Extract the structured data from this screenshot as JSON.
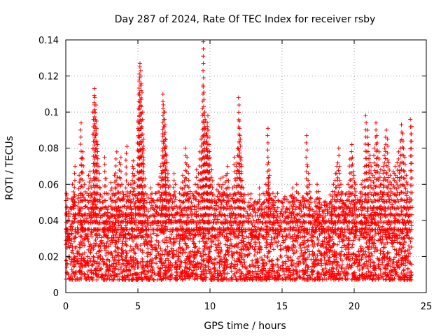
{
  "chart_data": {
    "type": "scatter",
    "title": "Day 287 of 2024, Rate Of TEC Index for receiver rsby",
    "xlabel": "GPS time / hours",
    "ylabel": "ROTI / TECUs",
    "xlim": [
      0,
      25
    ],
    "ylim": [
      0,
      0.14
    ],
    "grid": true,
    "marker": "+",
    "colors": {
      "points": "#ff0000",
      "grid": "#a0a0a0",
      "axes": "#000000"
    },
    "x_ticks": [
      {
        "value": 0,
        "label": "0"
      },
      {
        "value": 5,
        "label": "5"
      },
      {
        "value": 10,
        "label": "10"
      },
      {
        "value": 15,
        "label": "15"
      },
      {
        "value": 20,
        "label": "20"
      },
      {
        "value": 25,
        "label": "25"
      }
    ],
    "y_ticks": [
      {
        "value": 0,
        "label": "0"
      },
      {
        "value": 0.02,
        "label": "0.02"
      },
      {
        "value": 0.04,
        "label": "0.04"
      },
      {
        "value": 0.06,
        "label": "0.06"
      },
      {
        "value": 0.08,
        "label": "0.08"
      },
      {
        "value": 0.1,
        "label": "0.1"
      },
      {
        "value": 0.12,
        "label": "0.12"
      },
      {
        "value": 0.14,
        "label": "0.14"
      }
    ],
    "series": [
      {
        "name": "ROTI",
        "points": [
          [
            0.0,
            0.018
          ],
          [
            0.05,
            0.055
          ],
          [
            0.1,
            0.052
          ],
          [
            0.15,
            0.045
          ],
          [
            0.2,
            0.03
          ],
          [
            0.3,
            0.025
          ],
          [
            0.4,
            0.038
          ],
          [
            0.5,
            0.06
          ],
          [
            0.6,
            0.07
          ],
          [
            0.7,
            0.033
          ],
          [
            0.8,
            0.052
          ],
          [
            0.9,
            0.065
          ],
          [
            1.0,
            0.045
          ],
          [
            1.05,
            0.094
          ],
          [
            1.1,
            0.075
          ],
          [
            1.2,
            0.078
          ],
          [
            1.3,
            0.06
          ],
          [
            1.4,
            0.048
          ],
          [
            1.5,
            0.055
          ],
          [
            1.6,
            0.065
          ],
          [
            1.7,
            0.067
          ],
          [
            1.8,
            0.062
          ],
          [
            1.9,
            0.1
          ],
          [
            1.95,
            0.104
          ],
          [
            2.0,
            0.113
          ],
          [
            2.05,
            0.108
          ],
          [
            2.1,
            0.095
          ],
          [
            2.15,
            0.088
          ],
          [
            2.2,
            0.082
          ],
          [
            2.3,
            0.07
          ],
          [
            2.4,
            0.058
          ],
          [
            2.5,
            0.05
          ],
          [
            2.6,
            0.047
          ],
          [
            2.7,
            0.075
          ],
          [
            2.8,
            0.063
          ],
          [
            2.9,
            0.046
          ],
          [
            3.0,
            0.041
          ],
          [
            3.1,
            0.061
          ],
          [
            3.2,
            0.058
          ],
          [
            3.3,
            0.055
          ],
          [
            3.4,
            0.065
          ],
          [
            3.5,
            0.078
          ],
          [
            3.6,
            0.064
          ],
          [
            3.7,
            0.072
          ],
          [
            3.8,
            0.075
          ],
          [
            3.9,
            0.06
          ],
          [
            4.0,
            0.052
          ],
          [
            4.1,
            0.048
          ],
          [
            4.2,
            0.081
          ],
          [
            4.3,
            0.06
          ],
          [
            4.4,
            0.055
          ],
          [
            4.5,
            0.06
          ],
          [
            4.6,
            0.07
          ],
          [
            4.7,
            0.073
          ],
          [
            4.8,
            0.065
          ],
          [
            4.9,
            0.04
          ],
          [
            5.0,
            0.095
          ],
          [
            5.05,
            0.11
          ],
          [
            5.1,
            0.125
          ],
          [
            5.15,
            0.127
          ],
          [
            5.2,
            0.12
          ],
          [
            5.25,
            0.115
          ],
          [
            5.3,
            0.1
          ],
          [
            5.35,
            0.085
          ],
          [
            5.4,
            0.079
          ],
          [
            5.5,
            0.063
          ],
          [
            5.6,
            0.05
          ],
          [
            5.7,
            0.045
          ],
          [
            5.8,
            0.042
          ],
          [
            5.9,
            0.058
          ],
          [
            6.0,
            0.055
          ],
          [
            6.1,
            0.05
          ],
          [
            6.2,
            0.048
          ],
          [
            6.3,
            0.055
          ],
          [
            6.4,
            0.06
          ],
          [
            6.5,
            0.064
          ],
          [
            6.6,
            0.07
          ],
          [
            6.7,
            0.088
          ],
          [
            6.75,
            0.11
          ],
          [
            6.8,
            0.104
          ],
          [
            6.85,
            0.1
          ],
          [
            6.9,
            0.093
          ],
          [
            6.95,
            0.085
          ],
          [
            7.0,
            0.076
          ],
          [
            7.1,
            0.066
          ],
          [
            7.2,
            0.059
          ],
          [
            7.3,
            0.052
          ],
          [
            7.4,
            0.05
          ],
          [
            7.5,
            0.066
          ],
          [
            7.6,
            0.06
          ],
          [
            7.7,
            0.048
          ],
          [
            7.8,
            0.044
          ],
          [
            7.9,
            0.055
          ],
          [
            8.0,
            0.058
          ],
          [
            8.1,
            0.065
          ],
          [
            8.2,
            0.062
          ],
          [
            8.3,
            0.08
          ],
          [
            8.4,
            0.075
          ],
          [
            8.5,
            0.07
          ],
          [
            8.6,
            0.056
          ],
          [
            8.7,
            0.05
          ],
          [
            8.8,
            0.048
          ],
          [
            8.9,
            0.052
          ],
          [
            9.0,
            0.06
          ],
          [
            9.1,
            0.068
          ],
          [
            9.2,
            0.066
          ],
          [
            9.3,
            0.078
          ],
          [
            9.4,
            0.085
          ],
          [
            9.5,
            0.114
          ],
          [
            9.55,
            0.139
          ],
          [
            9.6,
            0.098
          ],
          [
            9.65,
            0.1
          ],
          [
            9.7,
            0.095
          ],
          [
            9.75,
            0.088
          ],
          [
            9.8,
            0.092
          ],
          [
            9.85,
            0.098
          ],
          [
            9.9,
            0.09
          ],
          [
            9.95,
            0.082
          ],
          [
            10.0,
            0.075
          ],
          [
            10.1,
            0.068
          ],
          [
            10.2,
            0.062
          ],
          [
            10.3,
            0.054
          ],
          [
            10.4,
            0.05
          ],
          [
            10.5,
            0.057
          ],
          [
            10.6,
            0.06
          ],
          [
            10.7,
            0.063
          ],
          [
            10.8,
            0.058
          ],
          [
            10.9,
            0.064
          ],
          [
            11.0,
            0.055
          ],
          [
            11.1,
            0.065
          ],
          [
            11.2,
            0.07
          ],
          [
            11.3,
            0.062
          ],
          [
            11.4,
            0.048
          ],
          [
            11.5,
            0.052
          ],
          [
            11.6,
            0.058
          ],
          [
            11.7,
            0.075
          ],
          [
            11.8,
            0.07
          ],
          [
            11.9,
            0.08
          ],
          [
            12.0,
            0.108
          ],
          [
            12.05,
            0.095
          ],
          [
            12.1,
            0.085
          ],
          [
            12.15,
            0.075
          ],
          [
            12.2,
            0.07
          ],
          [
            12.3,
            0.058
          ],
          [
            12.4,
            0.05
          ],
          [
            12.5,
            0.045
          ],
          [
            12.6,
            0.048
          ],
          [
            12.7,
            0.05
          ],
          [
            12.8,
            0.052
          ],
          [
            12.9,
            0.046
          ],
          [
            13.0,
            0.045
          ],
          [
            13.1,
            0.05
          ],
          [
            13.2,
            0.049
          ],
          [
            13.3,
            0.05
          ],
          [
            13.4,
            0.058
          ],
          [
            13.5,
            0.048
          ],
          [
            13.6,
            0.046
          ],
          [
            13.7,
            0.05
          ],
          [
            13.8,
            0.054
          ],
          [
            13.9,
            0.06
          ],
          [
            14.0,
            0.091
          ],
          [
            14.05,
            0.072
          ],
          [
            14.1,
            0.065
          ],
          [
            14.2,
            0.052
          ],
          [
            14.3,
            0.05
          ],
          [
            14.4,
            0.055
          ],
          [
            14.5,
            0.05
          ],
          [
            14.6,
            0.045
          ],
          [
            14.7,
            0.055
          ],
          [
            14.8,
            0.042
          ],
          [
            14.9,
            0.045
          ],
          [
            15.0,
            0.05
          ],
          [
            15.1,
            0.052
          ],
          [
            15.2,
            0.045
          ],
          [
            15.3,
            0.042
          ],
          [
            15.4,
            0.046
          ],
          [
            15.5,
            0.05
          ],
          [
            15.6,
            0.048
          ],
          [
            15.7,
            0.058
          ],
          [
            15.8,
            0.052
          ],
          [
            15.9,
            0.046
          ],
          [
            16.0,
            0.06
          ],
          [
            16.1,
            0.055
          ],
          [
            16.2,
            0.048
          ],
          [
            16.3,
            0.05
          ],
          [
            16.4,
            0.042
          ],
          [
            16.5,
            0.047
          ],
          [
            16.6,
            0.052
          ],
          [
            16.7,
            0.087
          ],
          [
            16.8,
            0.07
          ],
          [
            16.9,
            0.06
          ],
          [
            17.0,
            0.05
          ],
          [
            17.1,
            0.046
          ],
          [
            17.2,
            0.045
          ],
          [
            17.3,
            0.048
          ],
          [
            17.4,
            0.06
          ],
          [
            17.5,
            0.056
          ],
          [
            17.6,
            0.05
          ],
          [
            17.7,
            0.047
          ],
          [
            17.8,
            0.045
          ],
          [
            17.9,
            0.044
          ],
          [
            18.0,
            0.05
          ],
          [
            18.1,
            0.048
          ],
          [
            18.2,
            0.045
          ],
          [
            18.3,
            0.047
          ],
          [
            18.4,
            0.05
          ],
          [
            18.5,
            0.056
          ],
          [
            18.6,
            0.06
          ],
          [
            18.7,
            0.066
          ],
          [
            18.8,
            0.07
          ],
          [
            18.9,
            0.08
          ],
          [
            19.0,
            0.07
          ],
          [
            19.1,
            0.06
          ],
          [
            19.2,
            0.055
          ],
          [
            19.3,
            0.05
          ],
          [
            19.4,
            0.048
          ],
          [
            19.5,
            0.055
          ],
          [
            19.6,
            0.06
          ],
          [
            19.7,
            0.074
          ],
          [
            19.8,
            0.082
          ],
          [
            19.9,
            0.075
          ],
          [
            20.0,
            0.065
          ],
          [
            20.1,
            0.06
          ],
          [
            20.2,
            0.05
          ],
          [
            20.3,
            0.046
          ],
          [
            20.4,
            0.055
          ],
          [
            20.5,
            0.06
          ],
          [
            20.6,
            0.062
          ],
          [
            20.7,
            0.07
          ],
          [
            20.8,
            0.098
          ],
          [
            20.9,
            0.09
          ],
          [
            21.0,
            0.082
          ],
          [
            21.1,
            0.076
          ],
          [
            21.2,
            0.07
          ],
          [
            21.3,
            0.065
          ],
          [
            21.4,
            0.08
          ],
          [
            21.5,
            0.094
          ],
          [
            21.6,
            0.087
          ],
          [
            21.7,
            0.078
          ],
          [
            21.8,
            0.068
          ],
          [
            21.9,
            0.06
          ],
          [
            22.0,
            0.07
          ],
          [
            22.1,
            0.08
          ],
          [
            22.2,
            0.09
          ],
          [
            22.3,
            0.085
          ],
          [
            22.4,
            0.072
          ],
          [
            22.5,
            0.065
          ],
          [
            22.6,
            0.06
          ],
          [
            22.7,
            0.067
          ],
          [
            22.8,
            0.07
          ],
          [
            22.9,
            0.065
          ],
          [
            23.0,
            0.072
          ],
          [
            23.1,
            0.078
          ],
          [
            23.2,
            0.084
          ],
          [
            23.3,
            0.093
          ],
          [
            23.4,
            0.088
          ],
          [
            23.5,
            0.075
          ],
          [
            23.6,
            0.065
          ],
          [
            23.7,
            0.06
          ],
          [
            23.8,
            0.05
          ],
          [
            23.9,
            0.096
          ],
          [
            24.0,
            0.092
          ]
        ],
        "baseline_band": {
          "low": 0.007,
          "high": 0.035
        }
      }
    ]
  }
}
